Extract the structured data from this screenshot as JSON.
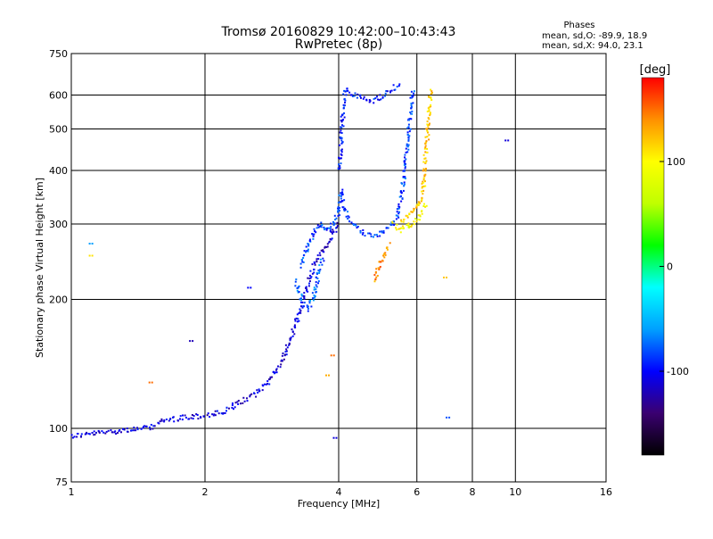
{
  "chart_data": {
    "type": "scatter",
    "title_line1": "Tromsø 20160829 10:42:00–10:43:43",
    "title_line2": "RwPretec (8p)",
    "stats": {
      "heading": "Phases",
      "line_o": "mean, sd,O: -89.9, 18.9",
      "line_x": "mean, sd,X:  94.0, 23.1"
    },
    "xlabel": "Frequency [MHz]",
    "ylabel": "Stationary phase Virtual Height [km]",
    "x_scale": "log",
    "y_scale": "log",
    "xlim": [
      1,
      16
    ],
    "ylim": [
      75,
      750
    ],
    "x_ticks": [
      {
        "value": 1,
        "label": "1"
      },
      {
        "value": 2,
        "label": "2"
      },
      {
        "value": 4,
        "label": "4"
      },
      {
        "value": 6,
        "label": "6"
      },
      {
        "value": 8,
        "label": "8"
      },
      {
        "value": 10,
        "label": "10"
      },
      {
        "value": 16,
        "label": "16"
      }
    ],
    "x_grid": [
      2,
      4,
      6,
      8,
      10
    ],
    "y_ticks": [
      {
        "value": 75,
        "label": "75"
      },
      {
        "value": 100,
        "label": "100"
      },
      {
        "value": 200,
        "label": "200"
      },
      {
        "value": 300,
        "label": "300"
      },
      {
        "value": 400,
        "label": "400"
      },
      {
        "value": 500,
        "label": "500"
      },
      {
        "value": 600,
        "label": "600"
      },
      {
        "value": 750,
        "label": "750"
      }
    ],
    "y_grid": [
      100,
      200,
      300,
      400,
      500,
      600
    ],
    "grid": true,
    "colorbar": {
      "label": "[deg]",
      "range": [
        -180,
        180
      ],
      "ticks": [
        {
          "value": 100,
          "label": "100"
        },
        {
          "value": 0,
          "label": "0"
        },
        {
          "value": -100,
          "label": "-100"
        }
      ],
      "colors": [
        "#000000",
        "#3a0070",
        "#0000ff",
        "#00a0ff",
        "#00ffff",
        "#00ff00",
        "#c0ff00",
        "#ffff00",
        "#ff9000",
        "#ff0000"
      ]
    },
    "traces": [
      {
        "phase": -110,
        "points": [
          [
            1.0,
            96
          ],
          [
            1.1,
            97
          ],
          [
            1.2,
            98
          ],
          [
            1.3,
            99
          ],
          [
            1.4,
            99.5
          ],
          [
            1.5,
            100
          ],
          [
            1.6,
            104
          ],
          [
            1.8,
            106
          ],
          [
            2.0,
            107
          ],
          [
            2.2,
            109
          ],
          [
            2.4,
            115
          ],
          [
            2.6,
            120
          ],
          [
            2.8,
            130
          ],
          [
            3.0,
            145
          ],
          [
            3.1,
            160
          ],
          [
            3.2,
            175
          ],
          [
            3.3,
            195
          ],
          [
            3.4,
            215
          ],
          [
            3.5,
            235
          ],
          [
            3.6,
            250
          ],
          [
            3.7,
            262
          ],
          [
            3.8,
            272
          ],
          [
            3.9,
            285
          ],
          [
            4.0,
            300
          ]
        ]
      },
      {
        "phase": -85,
        "points": [
          [
            3.3,
            240
          ],
          [
            3.4,
            265
          ],
          [
            3.5,
            280
          ],
          [
            3.6,
            300
          ],
          [
            3.7,
            295
          ],
          [
            3.8,
            290
          ],
          [
            3.9,
            300
          ],
          [
            4.0,
            320
          ],
          [
            4.05,
            360
          ],
          [
            4.1,
            330
          ],
          [
            4.2,
            310
          ],
          [
            4.4,
            295
          ],
          [
            4.6,
            285
          ],
          [
            4.8,
            280
          ],
          [
            5.0,
            285
          ],
          [
            5.2,
            295
          ],
          [
            5.4,
            310
          ],
          [
            5.5,
            330
          ],
          [
            5.6,
            380
          ],
          [
            5.7,
            450
          ],
          [
            5.8,
            540
          ],
          [
            5.9,
            620
          ]
        ]
      },
      {
        "phase": -75,
        "points": [
          [
            3.2,
            220
          ],
          [
            3.3,
            200
          ],
          [
            3.4,
            190
          ],
          [
            3.5,
            200
          ],
          [
            3.6,
            230
          ],
          [
            3.7,
            250
          ]
        ]
      },
      {
        "phase": -95,
        "points": [
          [
            4.0,
            400
          ],
          [
            4.05,
            460
          ],
          [
            4.1,
            560
          ],
          [
            4.15,
            620
          ],
          [
            4.3,
            600
          ],
          [
            4.5,
            590
          ],
          [
            4.7,
            580
          ],
          [
            4.9,
            590
          ],
          [
            5.1,
            600
          ],
          [
            5.3,
            620
          ],
          [
            5.5,
            640
          ]
        ]
      },
      {
        "phase": 120,
        "points": [
          [
            5.5,
            305
          ],
          [
            5.7,
            310
          ],
          [
            5.9,
            320
          ],
          [
            6.0,
            330
          ],
          [
            6.1,
            340
          ],
          [
            6.2,
            360
          ],
          [
            6.25,
            400
          ],
          [
            6.3,
            450
          ],
          [
            6.35,
            500
          ],
          [
            6.4,
            560
          ],
          [
            6.45,
            620
          ]
        ]
      },
      {
        "phase": 95,
        "points": [
          [
            5.3,
            300
          ],
          [
            5.5,
            290
          ],
          [
            5.7,
            298
          ],
          [
            5.9,
            300
          ],
          [
            6.1,
            315
          ],
          [
            6.3,
            335
          ]
        ]
      },
      {
        "phase": 140,
        "points": [
          [
            4.8,
            220
          ],
          [
            4.9,
            235
          ],
          [
            5.0,
            250
          ],
          [
            5.1,
            260
          ],
          [
            5.2,
            270
          ]
        ]
      }
    ],
    "scatter_points": [
      {
        "x": 1.1,
        "y": 270,
        "phase": -60
      },
      {
        "x": 1.1,
        "y": 253,
        "phase": 110
      },
      {
        "x": 1.5,
        "y": 128,
        "phase": 150
      },
      {
        "x": 1.85,
        "y": 160,
        "phase": -120
      },
      {
        "x": 2.5,
        "y": 213,
        "phase": -100
      },
      {
        "x": 3.9,
        "y": 95,
        "phase": -110
      },
      {
        "x": 3.85,
        "y": 148,
        "phase": 150
      },
      {
        "x": 3.75,
        "y": 133,
        "phase": 130
      },
      {
        "x": 6.9,
        "y": 225,
        "phase": 120
      },
      {
        "x": 7.0,
        "y": 106,
        "phase": -80
      },
      {
        "x": 9.5,
        "y": 470,
        "phase": -110
      }
    ]
  }
}
